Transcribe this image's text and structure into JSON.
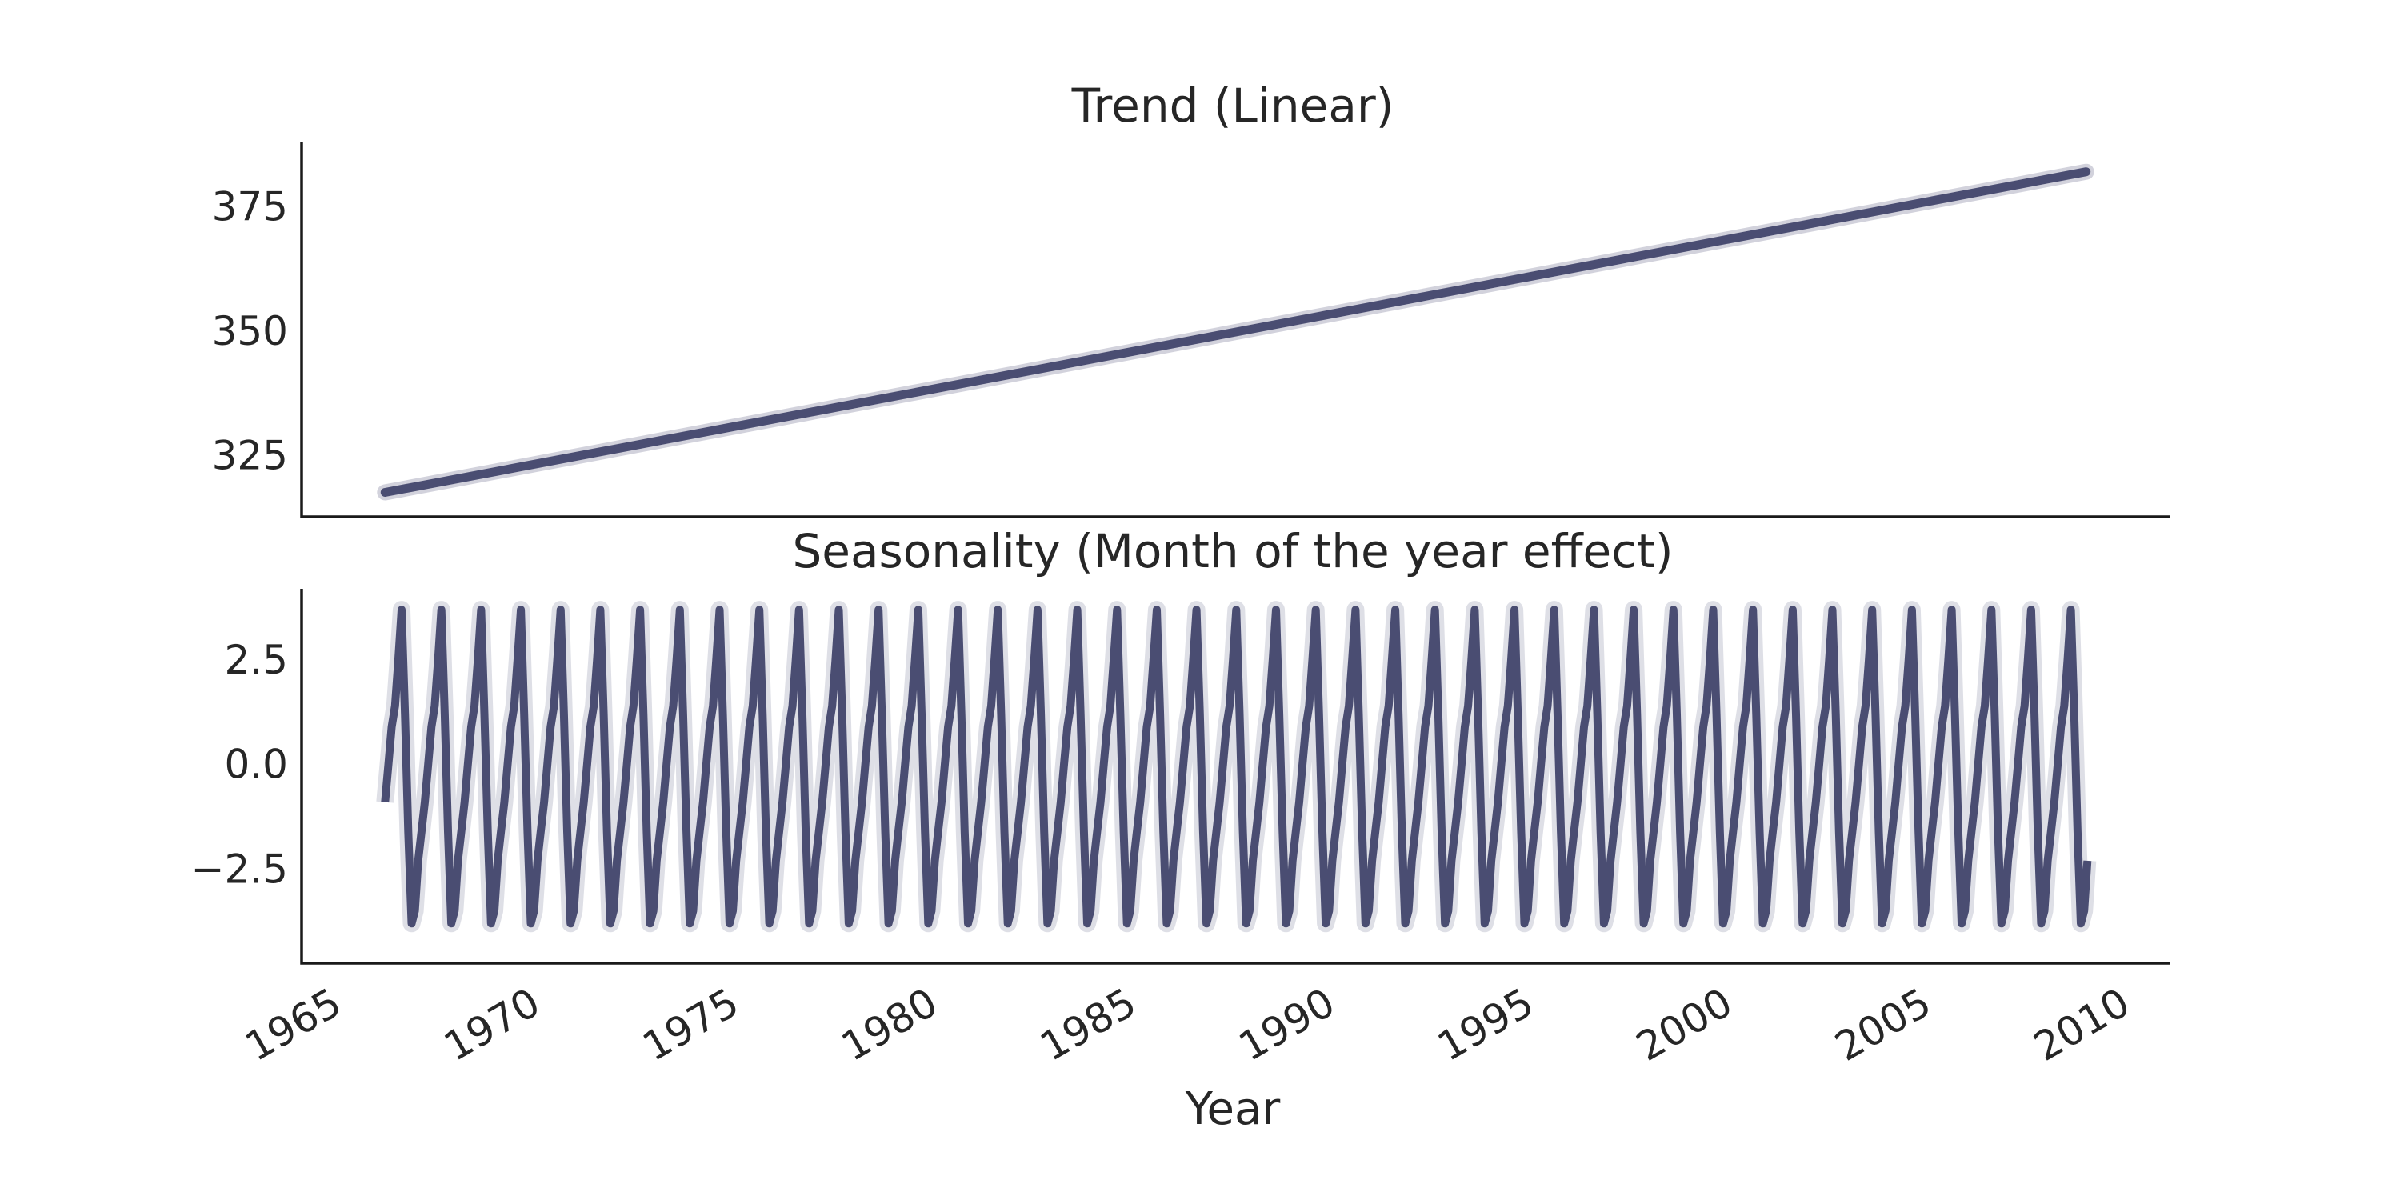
{
  "chart_data": [
    {
      "type": "line",
      "title": "Trend (Linear)",
      "xlabel": "",
      "ylabel": "",
      "xlim": [
        1964.3,
        2011.3
      ],
      "ylim": [
        312.7,
        387.9
      ],
      "yticks": [
        325,
        350,
        375
      ],
      "ytick_labels": [
        "325",
        "350",
        "375"
      ],
      "color": "#4a4d72",
      "grid": false,
      "series": [
        {
          "x": [
            1966.4,
            2009.2
          ],
          "values": [
            317.6,
            382.0
          ]
        }
      ]
    },
    {
      "type": "line",
      "title": "Seasonality (Month of the year effect)",
      "xlabel": "Year",
      "ylabel": "",
      "xlim": [
        1964.3,
        2011.3
      ],
      "ylim": [
        -4.75,
        4.2
      ],
      "yticks": [
        -2.5,
        0.0,
        2.5
      ],
      "ytick_labels": [
        "−2.5",
        "0.0",
        "2.5"
      ],
      "xticks": [
        1965,
        1970,
        1975,
        1980,
        1985,
        1990,
        1995,
        2000,
        2005,
        2010
      ],
      "xtick_labels": [
        "1965",
        "1970",
        "1975",
        "1980",
        "1985",
        "1990",
        "1995",
        "2000",
        "2005",
        "2010"
      ],
      "x_range": [
        1966.4,
        2009.2
      ],
      "monthly_pattern": [
        -0.9,
        0.0,
        0.9,
        1.4,
        2.5,
        3.7,
        1.2,
        -1.6,
        -3.8,
        -3.5,
        -2.3,
        -1.6
      ],
      "color": "#4a4d72",
      "grid": false
    }
  ]
}
